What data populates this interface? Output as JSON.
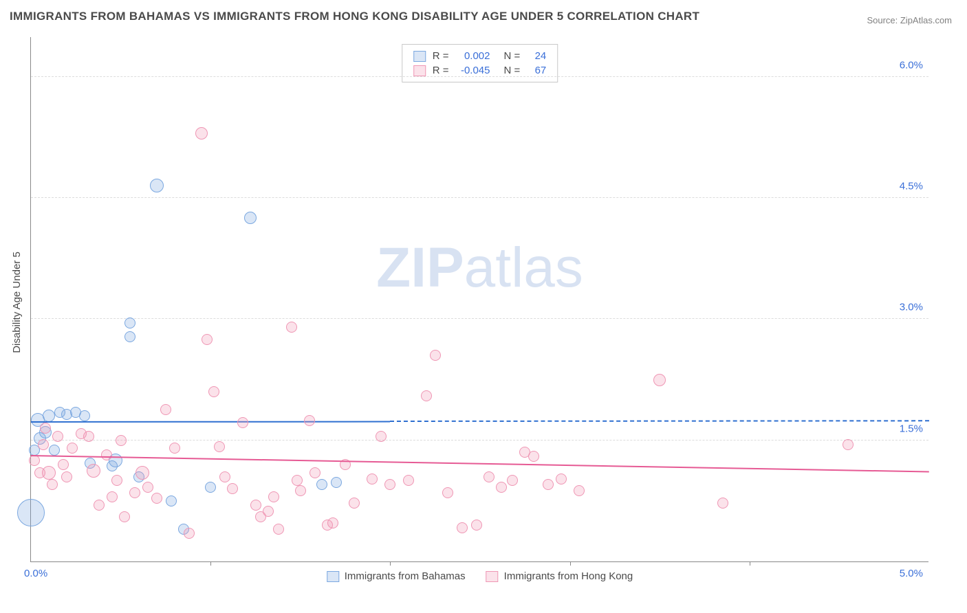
{
  "title": "IMMIGRANTS FROM BAHAMAS VS IMMIGRANTS FROM HONG KONG DISABILITY AGE UNDER 5 CORRELATION CHART",
  "source": "Source: ZipAtlas.com",
  "y_label": "Disability Age Under 5",
  "watermark_a": "ZIP",
  "watermark_b": "atlas",
  "chart": {
    "type": "scatter",
    "x_range": [
      0.0,
      5.0
    ],
    "y_range": [
      0.0,
      6.5
    ],
    "x_tick_left": "0.0%",
    "x_tick_right": "5.0%",
    "x_tick_positions": [
      1.0,
      2.0,
      3.0,
      4.0
    ],
    "y_ticks": [
      {
        "v": 1.5,
        "label": "1.5%"
      },
      {
        "v": 3.0,
        "label": "3.0%"
      },
      {
        "v": 4.5,
        "label": "4.5%"
      },
      {
        "v": 6.0,
        "label": "6.0%"
      }
    ],
    "grid_lines": [
      1.5,
      3.0,
      4.5,
      6.0
    ],
    "background_color": "#ffffff",
    "grid_color": "#dcdcdc",
    "axis_color": "#888888",
    "series": [
      {
        "name": "Immigrants from Bahamas",
        "fill": "rgba(122,167,224,0.28)",
        "stroke": "#7aa7e0",
        "trend_color": "#2e6fd0",
        "trend": {
          "y_start": 1.72,
          "y_end": 1.73,
          "solid_until": 2.0
        },
        "R": "0.002",
        "N": "24",
        "points": [
          {
            "x": 0.04,
            "y": 1.75,
            "r": 10
          },
          {
            "x": 0.05,
            "y": 1.52,
            "r": 9
          },
          {
            "x": 0.02,
            "y": 1.38,
            "r": 8
          },
          {
            "x": 0.0,
            "y": 0.6,
            "r": 20
          },
          {
            "x": 0.1,
            "y": 1.8,
            "r": 9
          },
          {
            "x": 0.16,
            "y": 1.85,
            "r": 8
          },
          {
            "x": 0.2,
            "y": 1.82,
            "r": 8
          },
          {
            "x": 0.25,
            "y": 1.85,
            "r": 8
          },
          {
            "x": 0.3,
            "y": 1.8,
            "r": 8
          },
          {
            "x": 0.33,
            "y": 1.22,
            "r": 8
          },
          {
            "x": 0.13,
            "y": 1.38,
            "r": 8
          },
          {
            "x": 0.08,
            "y": 1.6,
            "r": 9
          },
          {
            "x": 0.45,
            "y": 1.18,
            "r": 8
          },
          {
            "x": 0.47,
            "y": 1.25,
            "r": 10
          },
          {
            "x": 0.55,
            "y": 2.95,
            "r": 8
          },
          {
            "x": 0.55,
            "y": 2.78,
            "r": 8
          },
          {
            "x": 0.6,
            "y": 1.05,
            "r": 8
          },
          {
            "x": 0.7,
            "y": 4.65,
            "r": 10
          },
          {
            "x": 0.78,
            "y": 0.75,
            "r": 8
          },
          {
            "x": 0.85,
            "y": 0.4,
            "r": 8
          },
          {
            "x": 1.0,
            "y": 0.92,
            "r": 8
          },
          {
            "x": 1.22,
            "y": 4.25,
            "r": 9
          },
          {
            "x": 1.62,
            "y": 0.95,
            "r": 8
          },
          {
            "x": 1.7,
            "y": 0.98,
            "r": 8
          }
        ]
      },
      {
        "name": "Immigrants from Hong Kong",
        "fill": "rgba(239,150,180,0.28)",
        "stroke": "#ef96b4",
        "trend_color": "#e65a94",
        "trend": {
          "y_start": 1.3,
          "y_end": 1.1,
          "solid_until": 5.0
        },
        "R": "-0.045",
        "N": "67",
        "points": [
          {
            "x": 0.02,
            "y": 1.25,
            "r": 8
          },
          {
            "x": 0.05,
            "y": 1.1,
            "r": 8
          },
          {
            "x": 0.07,
            "y": 1.45,
            "r": 8
          },
          {
            "x": 0.1,
            "y": 1.1,
            "r": 10
          },
          {
            "x": 0.12,
            "y": 0.95,
            "r": 8
          },
          {
            "x": 0.15,
            "y": 1.55,
            "r": 8
          },
          {
            "x": 0.18,
            "y": 1.2,
            "r": 8
          },
          {
            "x": 0.2,
            "y": 1.05,
            "r": 8
          },
          {
            "x": 0.23,
            "y": 1.4,
            "r": 8
          },
          {
            "x": 0.28,
            "y": 1.58,
            "r": 8
          },
          {
            "x": 0.32,
            "y": 1.55,
            "r": 8
          },
          {
            "x": 0.35,
            "y": 1.12,
            "r": 10
          },
          {
            "x": 0.38,
            "y": 0.7,
            "r": 8
          },
          {
            "x": 0.45,
            "y": 0.8,
            "r": 8
          },
          {
            "x": 0.48,
            "y": 1.0,
            "r": 8
          },
          {
            "x": 0.5,
            "y": 1.5,
            "r": 8
          },
          {
            "x": 0.52,
            "y": 0.55,
            "r": 8
          },
          {
            "x": 0.58,
            "y": 0.85,
            "r": 8
          },
          {
            "x": 0.62,
            "y": 1.1,
            "r": 10
          },
          {
            "x": 0.65,
            "y": 0.92,
            "r": 8
          },
          {
            "x": 0.7,
            "y": 0.78,
            "r": 8
          },
          {
            "x": 0.75,
            "y": 1.88,
            "r": 8
          },
          {
            "x": 0.8,
            "y": 1.4,
            "r": 8
          },
          {
            "x": 0.88,
            "y": 0.35,
            "r": 8
          },
          {
            "x": 0.95,
            "y": 5.3,
            "r": 9
          },
          {
            "x": 0.98,
            "y": 2.75,
            "r": 8
          },
          {
            "x": 1.02,
            "y": 2.1,
            "r": 8
          },
          {
            "x": 1.08,
            "y": 1.05,
            "r": 8
          },
          {
            "x": 1.12,
            "y": 0.9,
            "r": 8
          },
          {
            "x": 1.18,
            "y": 1.72,
            "r": 8
          },
          {
            "x": 1.25,
            "y": 0.7,
            "r": 8
          },
          {
            "x": 1.28,
            "y": 0.55,
            "r": 8
          },
          {
            "x": 1.32,
            "y": 0.62,
            "r": 8
          },
          {
            "x": 1.35,
            "y": 0.8,
            "r": 8
          },
          {
            "x": 1.38,
            "y": 0.4,
            "r": 8
          },
          {
            "x": 1.48,
            "y": 1.0,
            "r": 8
          },
          {
            "x": 1.45,
            "y": 2.9,
            "r": 8
          },
          {
            "x": 1.5,
            "y": 0.88,
            "r": 8
          },
          {
            "x": 1.55,
            "y": 1.74,
            "r": 8
          },
          {
            "x": 1.58,
            "y": 1.1,
            "r": 8
          },
          {
            "x": 1.65,
            "y": 0.45,
            "r": 8
          },
          {
            "x": 1.68,
            "y": 0.48,
            "r": 8
          },
          {
            "x": 1.75,
            "y": 1.2,
            "r": 8
          },
          {
            "x": 1.8,
            "y": 0.72,
            "r": 8
          },
          {
            "x": 1.9,
            "y": 1.02,
            "r": 8
          },
          {
            "x": 1.95,
            "y": 1.55,
            "r": 8
          },
          {
            "x": 2.0,
            "y": 0.95,
            "r": 8
          },
          {
            "x": 2.1,
            "y": 1.0,
            "r": 8
          },
          {
            "x": 2.2,
            "y": 2.05,
            "r": 8
          },
          {
            "x": 2.25,
            "y": 2.55,
            "r": 8
          },
          {
            "x": 2.32,
            "y": 0.85,
            "r": 8
          },
          {
            "x": 2.4,
            "y": 0.42,
            "r": 8
          },
          {
            "x": 2.48,
            "y": 0.45,
            "r": 8
          },
          {
            "x": 2.55,
            "y": 1.05,
            "r": 8
          },
          {
            "x": 2.62,
            "y": 0.92,
            "r": 8
          },
          {
            "x": 2.68,
            "y": 1.0,
            "r": 8
          },
          {
            "x": 2.75,
            "y": 1.35,
            "r": 8
          },
          {
            "x": 2.8,
            "y": 1.3,
            "r": 8
          },
          {
            "x": 2.88,
            "y": 0.95,
            "r": 8
          },
          {
            "x": 2.95,
            "y": 1.02,
            "r": 8
          },
          {
            "x": 3.05,
            "y": 0.88,
            "r": 8
          },
          {
            "x": 3.5,
            "y": 2.25,
            "r": 9
          },
          {
            "x": 3.85,
            "y": 0.72,
            "r": 8
          },
          {
            "x": 4.55,
            "y": 1.45,
            "r": 8
          },
          {
            "x": 0.08,
            "y": 1.65,
            "r": 8
          },
          {
            "x": 0.42,
            "y": 1.32,
            "r": 8
          },
          {
            "x": 1.05,
            "y": 1.42,
            "r": 8
          }
        ]
      }
    ]
  },
  "legend_labels": {
    "R": "R =",
    "N": "N ="
  }
}
